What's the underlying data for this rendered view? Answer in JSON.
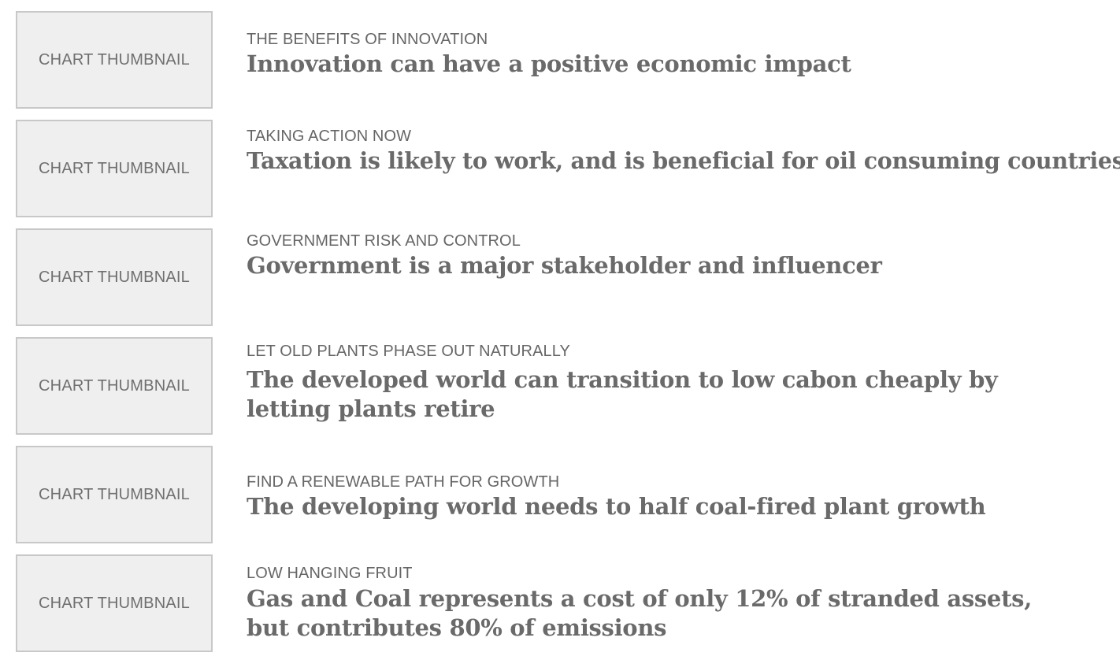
{
  "thumbnail_label": "CHART THUMBNAIL",
  "items": [
    {
      "kicker": "THE BENEFITS OF INNOVATION",
      "headline": "Innovation can have a positive economic impact"
    },
    {
      "kicker": "TAKING ACTION NOW",
      "headline": "Taxation is likely to work, and is beneficial for oil consuming countries"
    },
    {
      "kicker": "GOVERNMENT RISK AND CONTROL",
      "headline": "Government is a major stakeholder and influencer"
    },
    {
      "kicker": "LET OLD PLANTS PHASE OUT NATURALLY",
      "headline": "The developed world can transition to low cabon cheaply by letting plants retire"
    },
    {
      "kicker": "FIND A RENEWABLE PATH FOR GROWTH",
      "headline": "The developing world needs to half coal-fired plant growth"
    },
    {
      "kicker": "LOW HANGING FRUIT",
      "headline": "Gas and Coal represents a cost of only 12% of stranded assets, but contributes 80% of emissions"
    }
  ]
}
